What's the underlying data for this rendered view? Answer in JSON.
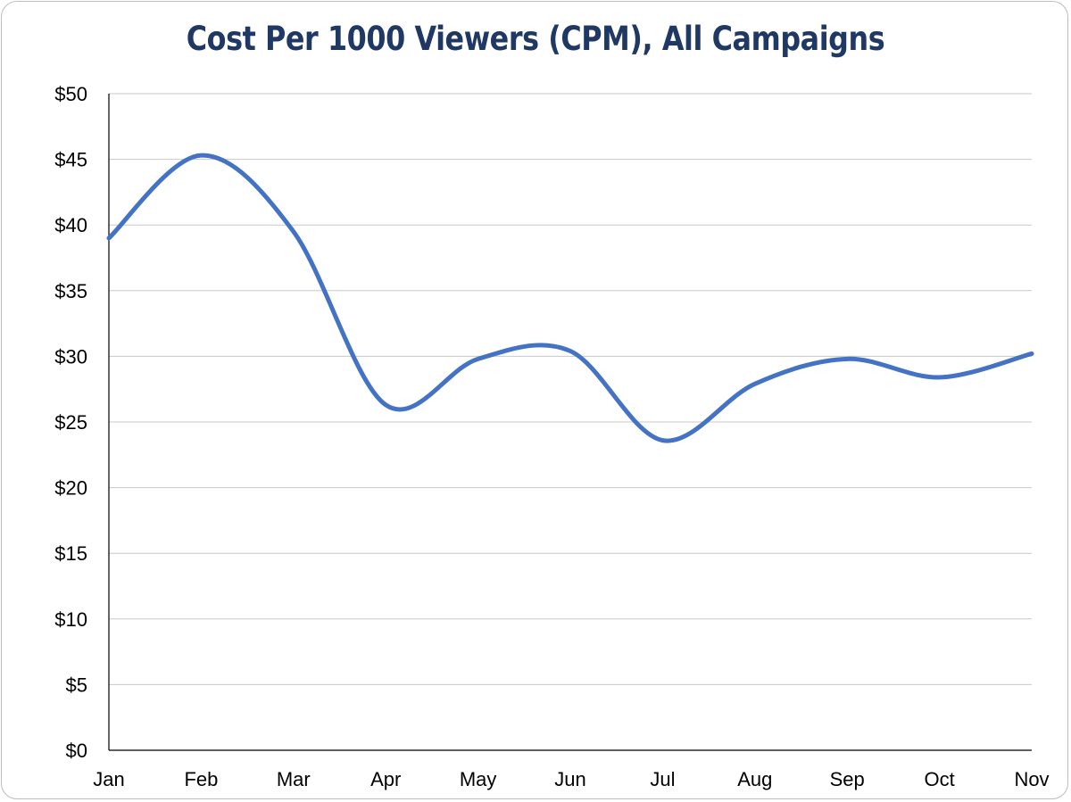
{
  "chart_data": {
    "type": "line",
    "title": "Cost Per 1000 Viewers (CPM), All Campaigns",
    "xlabel": "",
    "ylabel": "",
    "categories": [
      "Jan",
      "Feb",
      "Mar",
      "Apr",
      "May",
      "Jun",
      "Jul",
      "Aug",
      "Sep",
      "Oct",
      "Nov"
    ],
    "series": [
      {
        "values": [
          39,
          45.3,
          39.5,
          26.3,
          29.8,
          30.4,
          23.6,
          27.9,
          29.8,
          28.4,
          30.2
        ]
      }
    ],
    "ylim": [
      0,
      50
    ],
    "yticks": [
      0,
      5,
      10,
      15,
      20,
      25,
      30,
      35,
      40,
      45,
      50
    ],
    "ytick_labels": [
      "$0",
      "$5",
      "$10",
      "$15",
      "$20",
      "$25",
      "$30",
      "$35",
      "$40",
      "$45",
      "$50"
    ],
    "grid": true,
    "line_color": "#4472c4",
    "smooth": true,
    "legend": "none"
  }
}
